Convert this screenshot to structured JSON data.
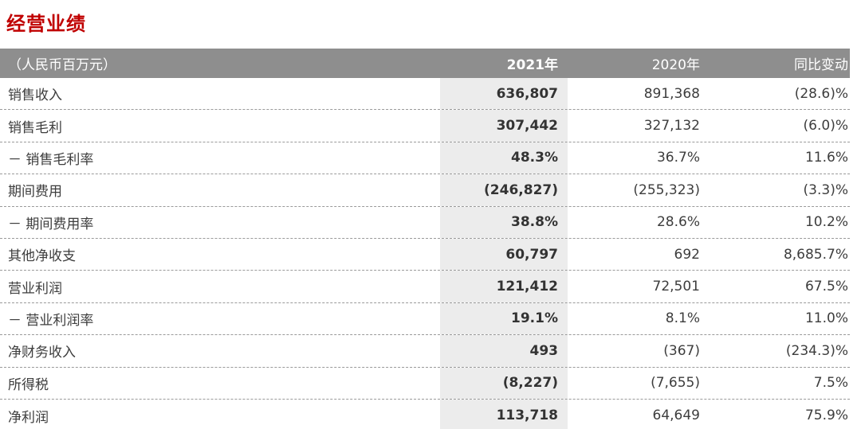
{
  "title": "经营业绩",
  "colors": {
    "title_red": "#c00000",
    "header_bg": "#8e8e8e",
    "highlight_column_bg": "#ececec"
  },
  "table": {
    "unit_label": "（人民币百万元）",
    "columns": [
      "2021年",
      "2020年",
      "同比变动"
    ],
    "rows": [
      {
        "label": "销售收入",
        "y2021": "636,807",
        "y2020": "891,368",
        "yoy": "(28.6)%"
      },
      {
        "label": "销售毛利",
        "y2021": "307,442",
        "y2020": "327,132",
        "yoy": "(6.0)%"
      },
      {
        "label": "－ 销售毛利率",
        "y2021": "48.3%",
        "y2020": "36.7%",
        "yoy": "11.6%"
      },
      {
        "label": "期间费用",
        "y2021": "(246,827)",
        "y2020": "(255,323)",
        "yoy": "(3.3)%"
      },
      {
        "label": "－ 期间费用率",
        "y2021": "38.8%",
        "y2020": "28.6%",
        "yoy": "10.2%"
      },
      {
        "label": "其他净收支",
        "y2021": "60,797",
        "y2020": "692",
        "yoy": "8,685.7%"
      },
      {
        "label": "营业利润",
        "y2021": "121,412",
        "y2020": "72,501",
        "yoy": "67.5%"
      },
      {
        "label": "－ 营业利润率",
        "y2021": "19.1%",
        "y2020": "8.1%",
        "yoy": "11.0%"
      },
      {
        "label": "净财务收入",
        "y2021": "493",
        "y2020": "(367)",
        "yoy": "(234.3)%"
      },
      {
        "label": "所得税",
        "y2021": "(8,227)",
        "y2020": "(7,655)",
        "yoy": "7.5%"
      },
      {
        "label": "净利润",
        "y2021": "113,718",
        "y2020": "64,649",
        "yoy": "75.9%"
      }
    ]
  }
}
